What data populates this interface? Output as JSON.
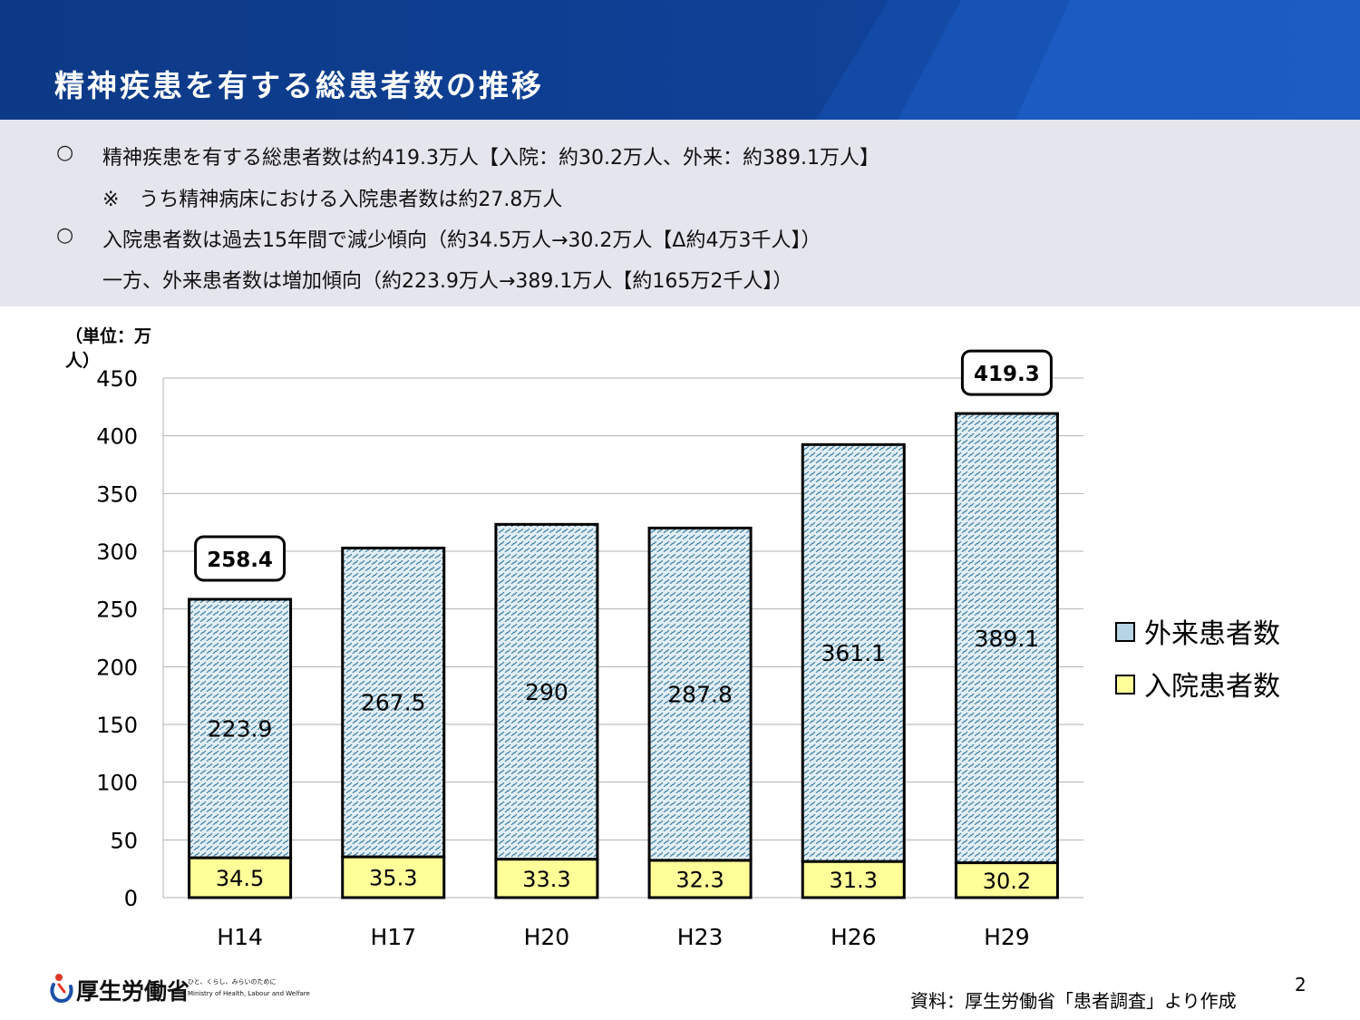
{
  "slide": {
    "title": "精神疾患を有する総患者数の推移",
    "page_number": "2",
    "source": "資料：厚生労働省「患者調査」より作成",
    "unit_label": "（単位：万人）"
  },
  "summary": {
    "bullet_symbol": "○",
    "lines": [
      "精神疾患を有する総患者数は約419.3万人【入院：約30.2万人、外来：約389.1万人】",
      "※　うち精神病床における入院患者数は約27.8万人",
      "入院患者数は過去15年間で減少傾向（約34.5万人→30.2万人【Δ約4万3千人】）",
      "一方、外来患者数は増加傾向（約223.9万人→389.1万人【約165万2千人】）"
    ]
  },
  "logo": {
    "name": "厚生労働省",
    "tagline": "ひと、くらし、みらいのために",
    "english": "Ministry of Health, Labour and Welfare"
  },
  "chart_data": {
    "type": "bar",
    "stacked": true,
    "categories": [
      "H14",
      "H17",
      "H20",
      "H23",
      "H26",
      "H29"
    ],
    "series": [
      {
        "name": "入院患者数",
        "values": [
          34.5,
          35.3,
          33.3,
          32.3,
          31.3,
          30.2
        ],
        "color": "#ffff99"
      },
      {
        "name": "外来患者数",
        "values": [
          223.9,
          267.5,
          290,
          287.8,
          361.1,
          389.1
        ],
        "color": "#b7d4e4"
      }
    ],
    "value_labels": {
      "入院患者数": [
        "34.5",
        "35.3",
        "33.3",
        "32.3",
        "31.3",
        "30.2"
      ],
      "外来患者数": [
        "223.9",
        "267.5",
        "290",
        "287.8",
        "361.1",
        "389.1"
      ]
    },
    "total_callouts": [
      {
        "category": "H14",
        "total": 258.4,
        "label": "258.4"
      },
      {
        "category": "H29",
        "total": 419.3,
        "label": "419.3"
      }
    ],
    "yticks": [
      0,
      50,
      100,
      150,
      200,
      250,
      300,
      350,
      400,
      450
    ],
    "ylim": [
      0,
      450
    ],
    "ylabel": "（単位：万人）",
    "grid": true,
    "legend": [
      "外来患者数",
      "入院患者数"
    ],
    "legend_position": "right"
  }
}
